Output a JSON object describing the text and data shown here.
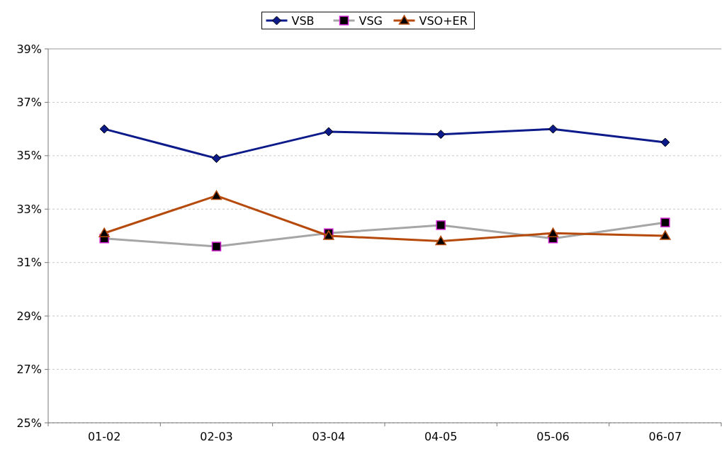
{
  "chart_data": {
    "type": "line",
    "categories": [
      "01-02",
      "02-03",
      "03-04",
      "04-05",
      "05-06",
      "06-07"
    ],
    "series": [
      {
        "name": "VSB",
        "color": "#0c1a8a",
        "marker": "diamond",
        "values": [
          36.0,
          34.9,
          35.9,
          35.8,
          36.0,
          35.5
        ]
      },
      {
        "name": "VSG",
        "color": "#a6a6a6",
        "marker": "square",
        "values": [
          31.9,
          31.6,
          32.1,
          32.4,
          31.9,
          32.5
        ]
      },
      {
        "name": "VSO+ER",
        "color": "#b54a0c",
        "marker": "triangle",
        "values": [
          32.1,
          33.5,
          32.0,
          31.8,
          32.1,
          32.0
        ]
      }
    ],
    "ylim": [
      25,
      39
    ],
    "yticks": [
      {
        "value": 25,
        "label": "25%"
      },
      {
        "value": 27,
        "label": "27%"
      },
      {
        "value": 29,
        "label": "29%"
      },
      {
        "value": 31,
        "label": "31%"
      },
      {
        "value": 33,
        "label": "33%"
      },
      {
        "value": 35,
        "label": "35%"
      },
      {
        "value": 37,
        "label": "37%"
      },
      {
        "value": 39,
        "label": "39%"
      }
    ],
    "grid": "y",
    "legend": "top",
    "line_style": "solid"
  }
}
